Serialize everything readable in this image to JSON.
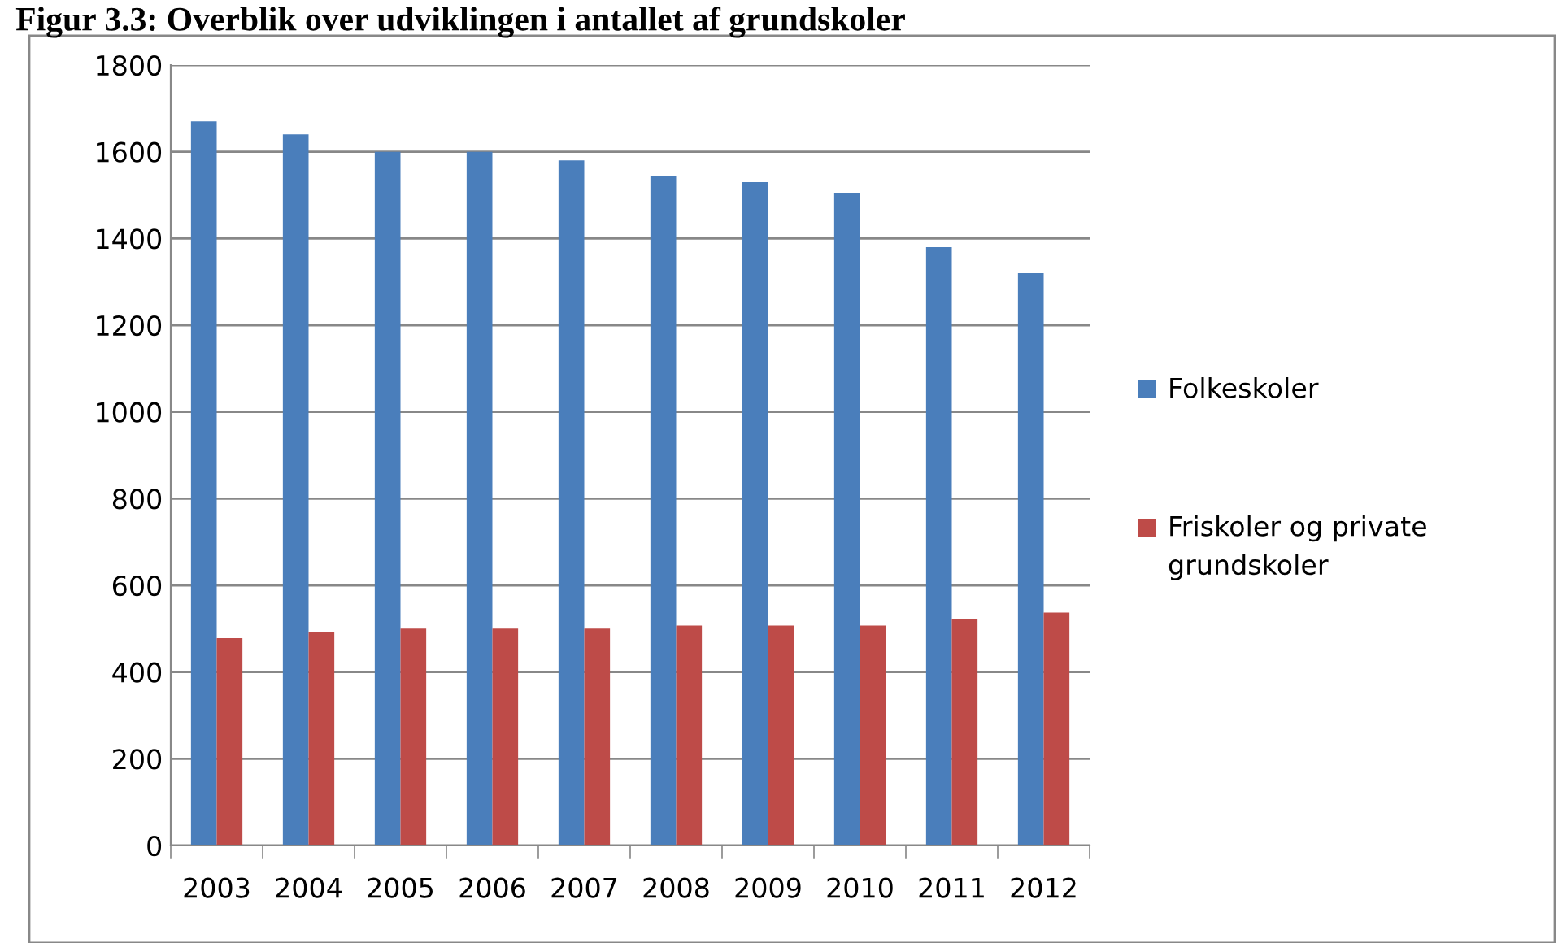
{
  "chart_data": {
    "type": "bar",
    "title": "Figur 3.3: Overblik over udviklingen i antallet af grundskoler",
    "categories": [
      "2003",
      "2004",
      "2005",
      "2006",
      "2007",
      "2008",
      "2009",
      "2010",
      "2011",
      "2012"
    ],
    "series": [
      {
        "name": "Folkeskoler",
        "color": "#4a7ebb",
        "values": [
          1670,
          1640,
          1600,
          1600,
          1580,
          1545,
          1530,
          1505,
          1380,
          1320
        ]
      },
      {
        "name": "Friskoler og private grundskoler",
        "color": "#be4b48",
        "values": [
          478,
          492,
          500,
          500,
          500,
          507,
          507,
          507,
          522,
          537
        ]
      }
    ],
    "ylim": [
      0,
      1800
    ],
    "yticks": [
      0,
      200,
      400,
      600,
      800,
      1000,
      1200,
      1400,
      1600,
      1800
    ],
    "grid": "y",
    "legend": "right"
  }
}
